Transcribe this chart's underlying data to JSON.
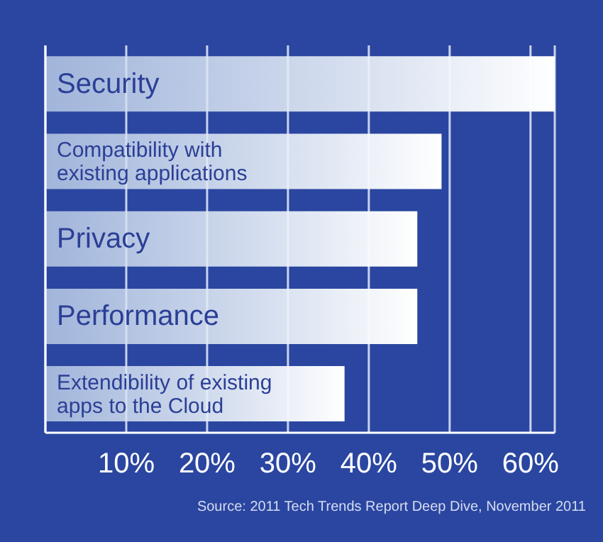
{
  "chart_data": {
    "type": "bar",
    "orientation": "horizontal",
    "categories": [
      "Security",
      "Compatibility with existing applications",
      "Privacy",
      "Performance",
      "Extendibility of existing apps to the Cloud"
    ],
    "values": [
      63,
      49,
      46,
      46,
      37
    ],
    "color": "#c9daee",
    "xlim": [
      0,
      63
    ],
    "xticks": [
      {
        "value": 10,
        "label": "10%"
      },
      {
        "value": 20,
        "label": "20%"
      },
      {
        "value": 30,
        "label": "30%"
      },
      {
        "value": 40,
        "label": "40%"
      },
      {
        "value": 50,
        "label": "50%"
      },
      {
        "value": 60,
        "label": "60%"
      }
    ],
    "grid": "x",
    "annotations": [
      "Source: 2011 Tech Trends Report Deep Dive, November 2011"
    ]
  }
}
